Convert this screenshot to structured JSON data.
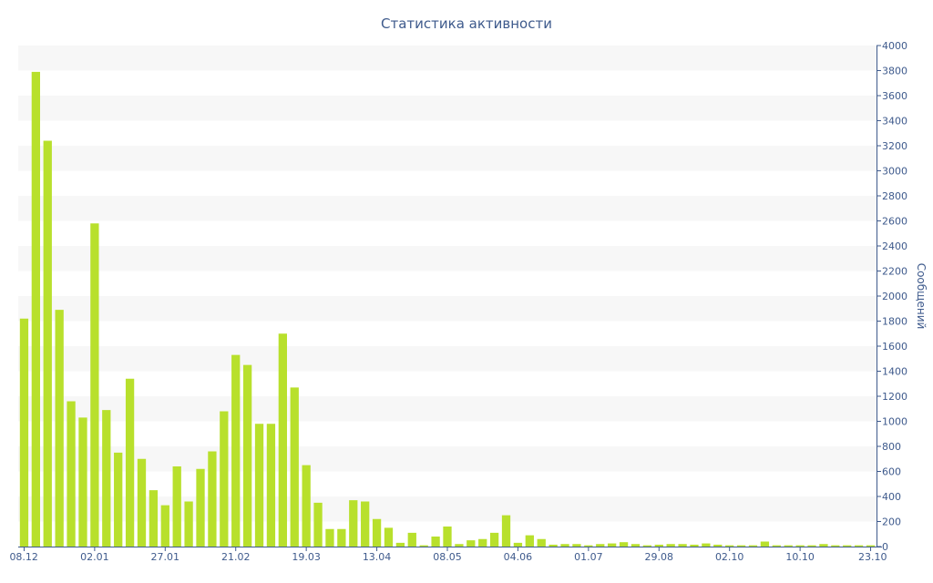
{
  "chart_data": {
    "type": "bar",
    "title": "Статистика активности",
    "ylabel": "Сообщений",
    "ylim": [
      0,
      4000
    ],
    "yticks": [
      0,
      200,
      400,
      600,
      800,
      1000,
      1200,
      1400,
      1600,
      1800,
      2000,
      2200,
      2400,
      2600,
      2800,
      3000,
      3200,
      3400,
      3600,
      3800,
      4000
    ],
    "y_axis_position": "right",
    "grid": "alternating horizontal bands",
    "x_tick_labels": [
      {
        "label": "08.12",
        "index": 0
      },
      {
        "label": "02.01",
        "index": 6
      },
      {
        "label": "27.01",
        "index": 12
      },
      {
        "label": "21.02",
        "index": 18
      },
      {
        "label": "19.03",
        "index": 24
      },
      {
        "label": "13.04",
        "index": 30
      },
      {
        "label": "08.05",
        "index": 36
      },
      {
        "label": "04.06",
        "index": 42
      },
      {
        "label": "01.07",
        "index": 48
      },
      {
        "label": "29.08",
        "index": 54
      },
      {
        "label": "02.10",
        "index": 60
      },
      {
        "label": "10.10",
        "index": 66
      },
      {
        "label": "23.10",
        "index": 72
      }
    ],
    "values": [
      1820,
      3790,
      3240,
      1890,
      1160,
      1030,
      2580,
      1090,
      750,
      1340,
      700,
      450,
      330,
      640,
      360,
      620,
      760,
      1080,
      1530,
      1450,
      980,
      980,
      1700,
      1270,
      650,
      350,
      140,
      140,
      370,
      360,
      220,
      150,
      30,
      110,
      10,
      80,
      160,
      20,
      50,
      60,
      110,
      250,
      30,
      90,
      60,
      15,
      20,
      20,
      10,
      20,
      25,
      35,
      20,
      10,
      15,
      20,
      20,
      15,
      25,
      15,
      10,
      10,
      10,
      40,
      10,
      10,
      10,
      10,
      20,
      10,
      10,
      10,
      10
    ],
    "colors": {
      "bar": "#b8e02c",
      "band": "#f7f7f7",
      "axis": "#3e5a8c",
      "text": "#3e5a8c"
    }
  }
}
